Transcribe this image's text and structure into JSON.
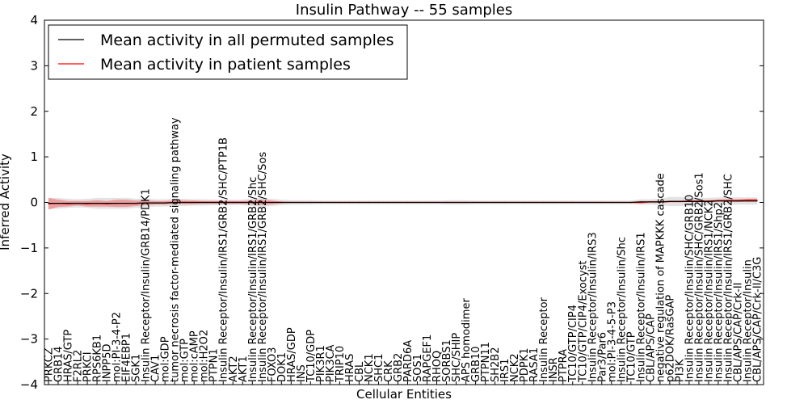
{
  "chart_data": {
    "type": "line",
    "title": "Insulin Pathway -- 55 samples",
    "xlabel": "Cellular Entities",
    "ylabel": "Inferred Activity",
    "ylim": [
      -4,
      4
    ],
    "yticks": [
      "−4",
      "−3",
      "−2",
      "−1",
      "0",
      "1",
      "2",
      "3",
      "4"
    ],
    "legend": {
      "placement": "upper-left",
      "entries": [
        {
          "label": "Mean activity in all permuted samples",
          "color": "#000000"
        },
        {
          "label": "Mean activity in patient samples",
          "color": "#ff0000"
        }
      ]
    },
    "categories": [
      "PRKCZ",
      "GRB14",
      "HRAS/GTP",
      "F2RL2",
      "PRKCI",
      "RPS6KB1",
      "INPP5D",
      "mol:PI-3-4-P2",
      "EIF4EBP1",
      "SGK1",
      "Insulin Receptor/Insulin/GRB14/PDK1",
      "CAV1",
      "mol:GDP",
      "tumor necrosis factor-mediated signaling pathway",
      "mol:GTP",
      "mol:cAMP",
      "mol:H2O2",
      "PTPN1",
      "Insulin Receptor/Insulin/IRS1/GRB2/SHC/PTP1B",
      "AKT2",
      "AKT1",
      "Insulin Receptor/Insulin/IRS1/GRB2/Shc",
      "Insulin Receptor/Insulin/IRS1/GRB2/SHC/Sos",
      "FOXO3",
      "DOK1",
      "HRAS/GDP",
      "INS",
      "TC10/GDP",
      "PIK3R1",
      "PIK3CA",
      "TRIP10",
      "HRAS",
      "CBL",
      "NCK1",
      "SHC1",
      "CRK",
      "GRB2",
      "PARD6A",
      "SOS1",
      "RAPGEF1",
      "RHOQ",
      "SORBS1",
      "SHC/SHIP",
      "APS homodimer",
      "GRB10",
      "PTPN11",
      "SH2B2",
      "IRS1",
      "NCK2",
      "PDPK1",
      "RASA1",
      "Insulin Receptor",
      "INSR",
      "PTPRA",
      "TC10/GTP/CIP4",
      "TC10/GTP/CIP4/Exocyst",
      "Insulin Receptor/Insulin/IRS3",
      "Par3/Par6",
      "mol:PI-3-4-5-P3",
      "Insulin Receptor/Insulin/Shc",
      "TC10/GTP",
      "Insulin Receptor/Insulin/IRS1",
      "CBL/APS/CAP",
      "negative regulation of MAPKKK cascade",
      "p62DOK/RasGAP",
      "PI3K",
      "Insulin Receptor/Insulin/SHC/GRB10",
      "Insulin Receptor/Insulin/SHC/GRB2/Sos1",
      "Insulin Receptor/Insulin/IRS1/NCK2",
      "Insulin Receptor/Insulin/IRS1/Shp2",
      "Insulin Receptor/Insulin/IRS1/GRB2/SHC",
      "CBL/APS/CAP/Crk-II",
      "Insulin Receptor/Insulin",
      "CBL/APS/CAP/Crk-II/C3G"
    ],
    "series": [
      {
        "name": "Mean activity in patient samples",
        "color": "#ff0000",
        "values": [
          -0.03,
          -0.02,
          -0.03,
          -0.02,
          -0.03,
          -0.02,
          -0.03,
          -0.02,
          -0.02,
          -0.02,
          -0.01,
          -0.01,
          -0.01,
          0,
          0,
          0,
          0,
          0,
          0,
          0,
          0,
          0,
          0,
          0,
          0,
          0,
          0,
          0,
          0,
          0,
          0,
          0,
          0,
          0,
          0,
          0,
          0,
          0,
          0,
          0,
          0,
          0,
          0,
          0,
          0,
          0,
          0,
          0,
          0,
          0,
          0,
          0,
          0,
          0,
          0,
          0,
          0,
          0,
          0,
          0,
          0,
          0,
          0.01,
          0.01,
          0.02,
          0.02,
          0.03,
          0.03,
          0.03,
          0.04,
          0.04,
          0.04,
          0.05,
          0.05
        ],
        "band": [
          0.13,
          0.08,
          0.06,
          0.05,
          0.06,
          0.07,
          0.06,
          0.08,
          0.08,
          0.06,
          0.05,
          0.04,
          0.04,
          0.04,
          0.04,
          0.04,
          0.03,
          0.03,
          0.03,
          0.03,
          0.03,
          0.04,
          0.06,
          0.04,
          0.02,
          0.01,
          0.01,
          0.01,
          0.01,
          0.01,
          0.01,
          0.01,
          0.01,
          0.01,
          0.01,
          0.01,
          0.01,
          0.01,
          0.01,
          0.01,
          0.01,
          0.01,
          0.01,
          0.01,
          0.01,
          0.01,
          0.01,
          0.01,
          0.01,
          0.01,
          0.01,
          0.01,
          0.01,
          0.01,
          0.01,
          0.01,
          0.01,
          0.01,
          0.01,
          0.01,
          0.01,
          0.03,
          0.02,
          0.02,
          0.02,
          0.02,
          0.02,
          0.02,
          0.02,
          0.02,
          0.03,
          0.03,
          0.03,
          0.03
        ]
      },
      {
        "name": "Mean activity in all permuted samples",
        "color": "#000000",
        "values": [
          -0.02,
          -0.02,
          -0.02,
          -0.02,
          -0.02,
          -0.02,
          -0.02,
          -0.02,
          -0.02,
          -0.02,
          -0.01,
          -0.01,
          -0.01,
          0,
          0,
          0,
          0,
          0,
          0,
          0,
          0,
          0,
          0,
          0,
          0,
          0,
          0,
          0,
          0,
          0,
          0,
          0,
          0,
          0,
          0,
          0,
          0,
          0,
          0,
          0,
          0,
          0,
          0,
          0,
          0,
          0,
          0,
          0,
          0,
          0,
          0,
          0,
          0,
          0,
          0,
          0,
          0,
          0,
          0,
          0,
          0,
          0.01,
          0.01,
          0.01,
          0.02,
          0.02,
          0.02,
          0.02,
          0.02,
          0.03,
          0.03,
          0.03,
          0.03,
          0.03
        ],
        "band": [
          0.12,
          0.12,
          0.1,
          0.09,
          0.1,
          0.12,
          0.12,
          0.12,
          0.12,
          0.1,
          0.1,
          0.08,
          0.08,
          0.08,
          0.08,
          0.07,
          0.07,
          0.06,
          0.06,
          0.06,
          0.06,
          0.08,
          0.1,
          0.08,
          0.06,
          0.05,
          0.05,
          0.05,
          0.04,
          0.04,
          0.04,
          0.04,
          0.04,
          0.04,
          0.04,
          0.04,
          0.04,
          0.04,
          0.04,
          0.04,
          0.04,
          0.05,
          0.05,
          0.05,
          0.04,
          0.04,
          0.04,
          0.04,
          0.04,
          0.04,
          0.04,
          0.04,
          0.04,
          0.04,
          0.04,
          0.04,
          0.04,
          0.04,
          0.04,
          0.04,
          0.04,
          0.06,
          0.06,
          0.07,
          0.1,
          0.1,
          0.09,
          0.08,
          0.08,
          0.08,
          0.08,
          0.08,
          0.08,
          0.08
        ]
      }
    ]
  }
}
